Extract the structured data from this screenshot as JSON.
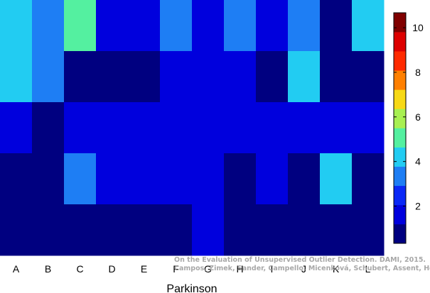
{
  "chart_data": {
    "type": "heatmap",
    "xlabel": "Parkinson",
    "ylabel": "",
    "categories": [
      "A",
      "B",
      "C",
      "D",
      "E",
      "F",
      "G",
      "H",
      "I",
      "J",
      "K",
      "L"
    ],
    "rows": 5,
    "values": [
      [
        4,
        3,
        5,
        2,
        2,
        3,
        2,
        3,
        2,
        3,
        1,
        4
      ],
      [
        4,
        3,
        1,
        1,
        1,
        2,
        2,
        2,
        1,
        4,
        1,
        1
      ],
      [
        2,
        1,
        2,
        2,
        2,
        2,
        2,
        2,
        2,
        2,
        2,
        2
      ],
      [
        1,
        1,
        3,
        2,
        2,
        2,
        2,
        1,
        2,
        1,
        4,
        1
      ],
      [
        1,
        1,
        1,
        1,
        1,
        1,
        2,
        1,
        1,
        1,
        1,
        1
      ]
    ],
    "colorbar": {
      "min": 0.33,
      "max": 10.67,
      "ticks": [
        2,
        4,
        6,
        8,
        10
      ],
      "colors": [
        "#000080",
        "#0000dd",
        "#0a28f6",
        "#1e7ef4",
        "#22ccf2",
        "#54f0a0",
        "#a8f052",
        "#f7d916",
        "#ff8000",
        "#ff2a00",
        "#dd0000",
        "#800000"
      ]
    },
    "grid": false
  },
  "watermark": {
    "line1": "On the Evaluation of Unsupervised Outlier Detection. DAMI, 2015.",
    "line2": "Campos, Zimek, Sander, Campello, Micenková, Schubert, Assent, Houle"
  }
}
